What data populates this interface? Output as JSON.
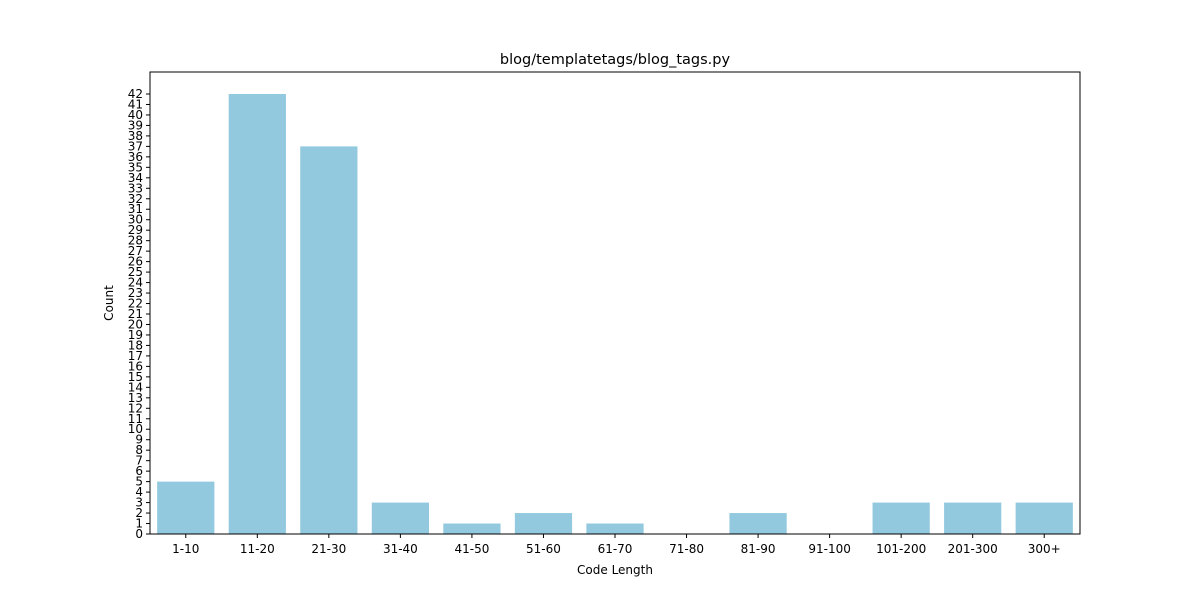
{
  "chart_data": {
    "type": "bar",
    "title": "blog/templatetags/blog_tags.py",
    "xlabel": "Code Length",
    "ylabel": "Count",
    "categories": [
      "1-10",
      "11-20",
      "21-30",
      "31-40",
      "41-50",
      "51-60",
      "61-70",
      "71-80",
      "81-90",
      "91-100",
      "101-200",
      "201-300",
      "300+"
    ],
    "values": [
      5,
      42,
      37,
      3,
      1,
      2,
      1,
      0,
      2,
      0,
      3,
      3,
      3
    ],
    "ylim": [
      0,
      44.1
    ],
    "yticks": [
      0,
      1,
      2,
      3,
      4,
      5,
      6,
      7,
      8,
      9,
      10,
      11,
      12,
      13,
      14,
      15,
      16,
      17,
      18,
      19,
      20,
      21,
      22,
      23,
      24,
      25,
      26,
      27,
      28,
      29,
      30,
      31,
      32,
      33,
      34,
      35,
      36,
      37,
      38,
      39,
      40,
      41,
      42
    ],
    "bar_color": "#92c9df",
    "grid": false,
    "legend": "none"
  }
}
